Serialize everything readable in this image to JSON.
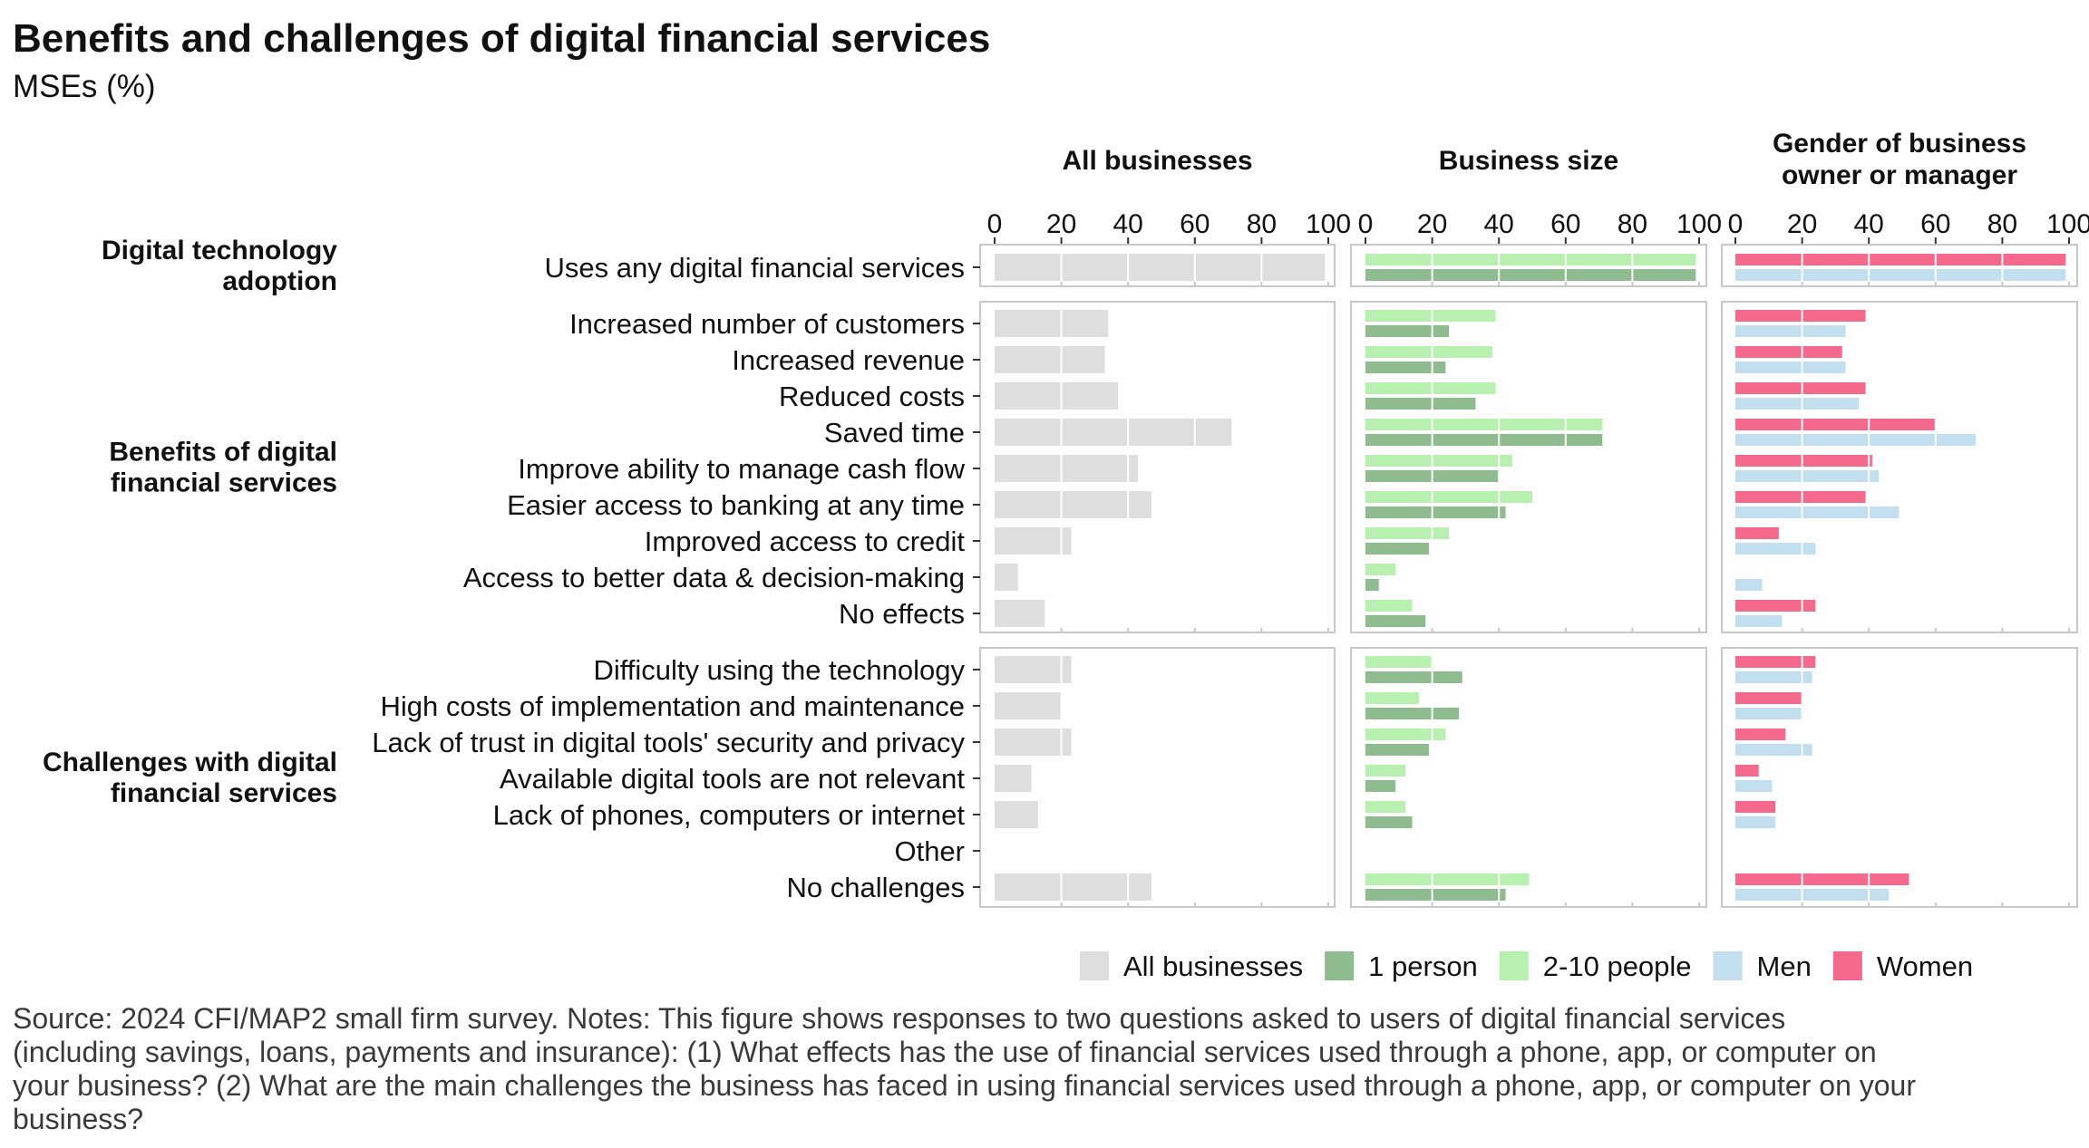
{
  "title": "Benefits and challenges of digital financial services",
  "subtitle": "MSEs (%)",
  "source": "Source: 2024 CFI/MAP2 small firm survey. Notes: This figure shows responses to two questions asked to users of digital financial services\n(including savings, loans, payments and insurance): (1) What effects has the use of financial services used through a phone, app, or computer on\nyour business? (2) What are the main challenges the business has faced in using financial services used through a phone, app, or computer on your\nbusiness?",
  "colors": {
    "all_businesses": "#dedede",
    "one_person": "#8fbc8f",
    "two_to_ten": "#b8f0b0",
    "men": "#c2dff0",
    "women": "#f56a8c",
    "panel_border": "#c8c8c8"
  },
  "chart_data": {
    "type": "bar",
    "orientation": "horizontal",
    "xlim": [
      0,
      100
    ],
    "ticks": [
      0,
      20,
      40,
      60,
      80,
      100
    ],
    "grid": true,
    "legend_position": "bottom-right",
    "facets": [
      {
        "title": "All businesses",
        "series": [
          "all"
        ]
      },
      {
        "title": "Business size",
        "series": [
          "two_to_ten",
          "one_person"
        ]
      },
      {
        "title": "Gender of business\nowner or manager",
        "series": [
          "women",
          "men"
        ]
      }
    ],
    "legend": [
      {
        "key": "all",
        "label": "All businesses",
        "color": "#dedede"
      },
      {
        "key": "one_person",
        "label": "1 person",
        "color": "#8fbc8f"
      },
      {
        "key": "two_to_ten",
        "label": "2-10 people",
        "color": "#b8f0b0"
      },
      {
        "key": "men",
        "label": "Men",
        "color": "#c2dff0"
      },
      {
        "key": "women",
        "label": "Women",
        "color": "#f56a8c"
      }
    ],
    "groups": [
      {
        "label": "Digital technology\nadoption",
        "items": [
          {
            "label": "Uses any digital financial services",
            "all": 99,
            "two_to_ten": 99,
            "one_person": 99,
            "women": 99,
            "men": 99
          }
        ]
      },
      {
        "label": "Benefits of digital\nfinancial services",
        "items": [
          {
            "label": "Increased number of customers",
            "all": 34,
            "two_to_ten": 39,
            "one_person": 25,
            "women": 39,
            "men": 33
          },
          {
            "label": "Increased revenue",
            "all": 33,
            "two_to_ten": 38,
            "one_person": 24,
            "women": 32,
            "men": 33
          },
          {
            "label": "Reduced costs",
            "all": 37,
            "two_to_ten": 39,
            "one_person": 33,
            "women": 39,
            "men": 37
          },
          {
            "label": "Saved time",
            "all": 71,
            "two_to_ten": 71,
            "one_person": 71,
            "women": 60,
            "men": 72
          },
          {
            "label": "Improve ability to manage cash flow",
            "all": 43,
            "two_to_ten": 44,
            "one_person": 40,
            "women": 41,
            "men": 43
          },
          {
            "label": "Easier access to banking at any time",
            "all": 47,
            "two_to_ten": 50,
            "one_person": 42,
            "women": 39,
            "men": 49
          },
          {
            "label": "Improved access to credit",
            "all": 23,
            "two_to_ten": 25,
            "one_person": 19,
            "women": 13,
            "men": 24
          },
          {
            "label": "Access to better data & decision-making",
            "all": 7,
            "two_to_ten": 9,
            "one_person": 4,
            "women": 0,
            "men": 8
          },
          {
            "label": "No effects",
            "all": 15,
            "two_to_ten": 14,
            "one_person": 18,
            "women": 24,
            "men": 14
          }
        ]
      },
      {
        "label": "Challenges with digital\nfinancial services",
        "items": [
          {
            "label": "Difficulty using the technology",
            "all": 23,
            "two_to_ten": 20,
            "one_person": 29,
            "women": 24,
            "men": 23
          },
          {
            "label": "High costs of implementation and maintenance",
            "all": 20,
            "two_to_ten": 16,
            "one_person": 28,
            "women": 20,
            "men": 20
          },
          {
            "label": "Lack of trust in digital tools' security and privacy",
            "all": 23,
            "two_to_ten": 24,
            "one_person": 19,
            "women": 15,
            "men": 23
          },
          {
            "label": "Available digital tools are not relevant",
            "all": 11,
            "two_to_ten": 12,
            "one_person": 9,
            "women": 7,
            "men": 11
          },
          {
            "label": "Lack of phones, computers or internet",
            "all": 13,
            "two_to_ten": 12,
            "one_person": 14,
            "women": 12,
            "men": 12
          },
          {
            "label": "Other",
            "all": 0,
            "two_to_ten": 0,
            "one_person": 0,
            "women": 0,
            "men": 0
          },
          {
            "label": "No challenges",
            "all": 47,
            "two_to_ten": 49,
            "one_person": 42,
            "women": 52,
            "men": 46
          }
        ]
      }
    ]
  }
}
